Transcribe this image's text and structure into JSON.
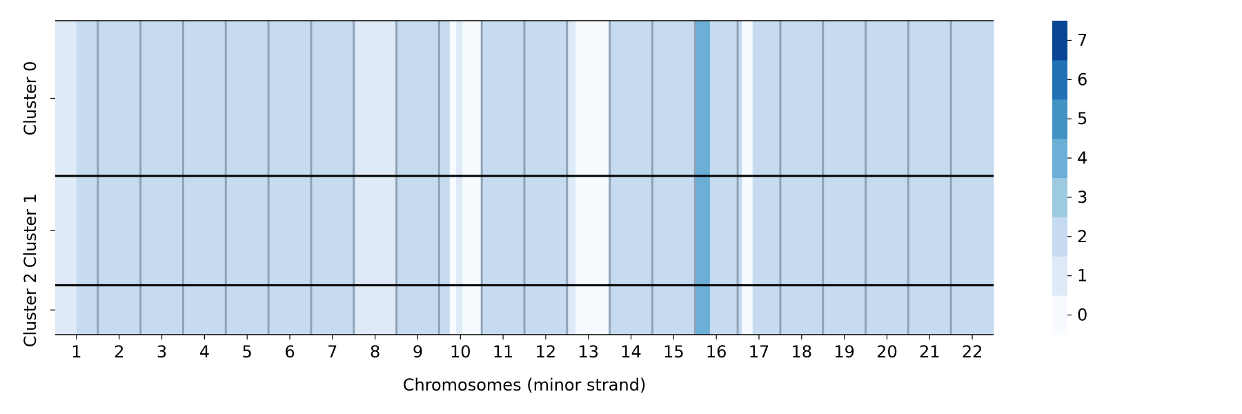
{
  "chart_data": {
    "type": "heatmap",
    "xlabel": "Chromosomes (minor strand)",
    "x_ticks": [
      "1",
      "2",
      "3",
      "4",
      "5",
      "6",
      "7",
      "8",
      "9",
      "10",
      "11",
      "12",
      "13",
      "14",
      "15",
      "16",
      "17",
      "18",
      "19",
      "20",
      "21",
      "22"
    ],
    "y_ticks": [
      "Cluster 0",
      "Cluster 1",
      "Cluster 2"
    ],
    "cluster_rows": [
      44,
      31,
      14
    ],
    "colorbar": {
      "min": -0.5,
      "max": 7.5,
      "ticks": [
        0,
        1,
        2,
        3,
        4,
        5,
        6,
        7
      ],
      "colors": [
        "#f7fbff",
        "#deebf7",
        "#c6dbef",
        "#9ecae1",
        "#6baed6",
        "#4292c6",
        "#2171b5",
        "#084594"
      ]
    },
    "grid": false,
    "description_note": "",
    "segments": [
      {
        "chr": "1",
        "start": 0.0,
        "end": 0.5,
        "value": 1
      },
      {
        "chr": "1",
        "start": 0.5,
        "end": 1.0,
        "value": 2
      },
      {
        "chr": "2",
        "start": 0.0,
        "end": 1.0,
        "value": 2
      },
      {
        "chr": "3",
        "start": 0.0,
        "end": 1.0,
        "value": 2
      },
      {
        "chr": "4",
        "start": 0.0,
        "end": 1.0,
        "value": 2
      },
      {
        "chr": "5",
        "start": 0.0,
        "end": 1.0,
        "value": 2
      },
      {
        "chr": "6",
        "start": 0.0,
        "end": 1.0,
        "value": 2
      },
      {
        "chr": "7",
        "start": 0.0,
        "end": 1.0,
        "value": 2
      },
      {
        "chr": "8",
        "start": 0.0,
        "end": 1.0,
        "value": 1
      },
      {
        "chr": "9",
        "start": 0.0,
        "end": 1.0,
        "value": 2
      },
      {
        "chr": "10",
        "start": 0.0,
        "end": 0.25,
        "value": 2
      },
      {
        "chr": "10",
        "start": 0.25,
        "end": 0.4,
        "value": 0
      },
      {
        "chr": "10",
        "start": 0.4,
        "end": 0.55,
        "value": 1
      },
      {
        "chr": "10",
        "start": 0.55,
        "end": 1.0,
        "value": 0
      },
      {
        "chr": "11",
        "start": 0.0,
        "end": 1.0,
        "value": 2
      },
      {
        "chr": "12",
        "start": 0.0,
        "end": 1.0,
        "value": 2
      },
      {
        "chr": "13",
        "start": 0.0,
        "end": 0.2,
        "value": 1
      },
      {
        "chr": "13",
        "start": 0.2,
        "end": 1.0,
        "value": 0
      },
      {
        "chr": "14",
        "start": 0.0,
        "end": 1.0,
        "value": 2
      },
      {
        "chr": "15",
        "start": 0.0,
        "end": 1.0,
        "value": 2
      },
      {
        "chr": "16",
        "start": 0.0,
        "end": 0.35,
        "value": 4
      },
      {
        "chr": "16",
        "start": 0.35,
        "end": 1.0,
        "value": 2
      },
      {
        "chr": "17",
        "start": 0.0,
        "end": 0.1,
        "value": 2
      },
      {
        "chr": "17",
        "start": 0.1,
        "end": 0.35,
        "value": 0
      },
      {
        "chr": "17",
        "start": 0.35,
        "end": 1.0,
        "value": 2
      },
      {
        "chr": "18",
        "start": 0.0,
        "end": 1.0,
        "value": 2
      },
      {
        "chr": "19",
        "start": 0.0,
        "end": 1.0,
        "value": 2
      },
      {
        "chr": "20",
        "start": 0.0,
        "end": 1.0,
        "value": 2
      },
      {
        "chr": "21",
        "start": 0.0,
        "end": 1.0,
        "value": 2
      },
      {
        "chr": "22",
        "start": 0.0,
        "end": 1.0,
        "value": 2
      }
    ],
    "colors": {
      "chromosome_divider": "#8fa3b8",
      "cluster_divider": "#000000"
    }
  }
}
